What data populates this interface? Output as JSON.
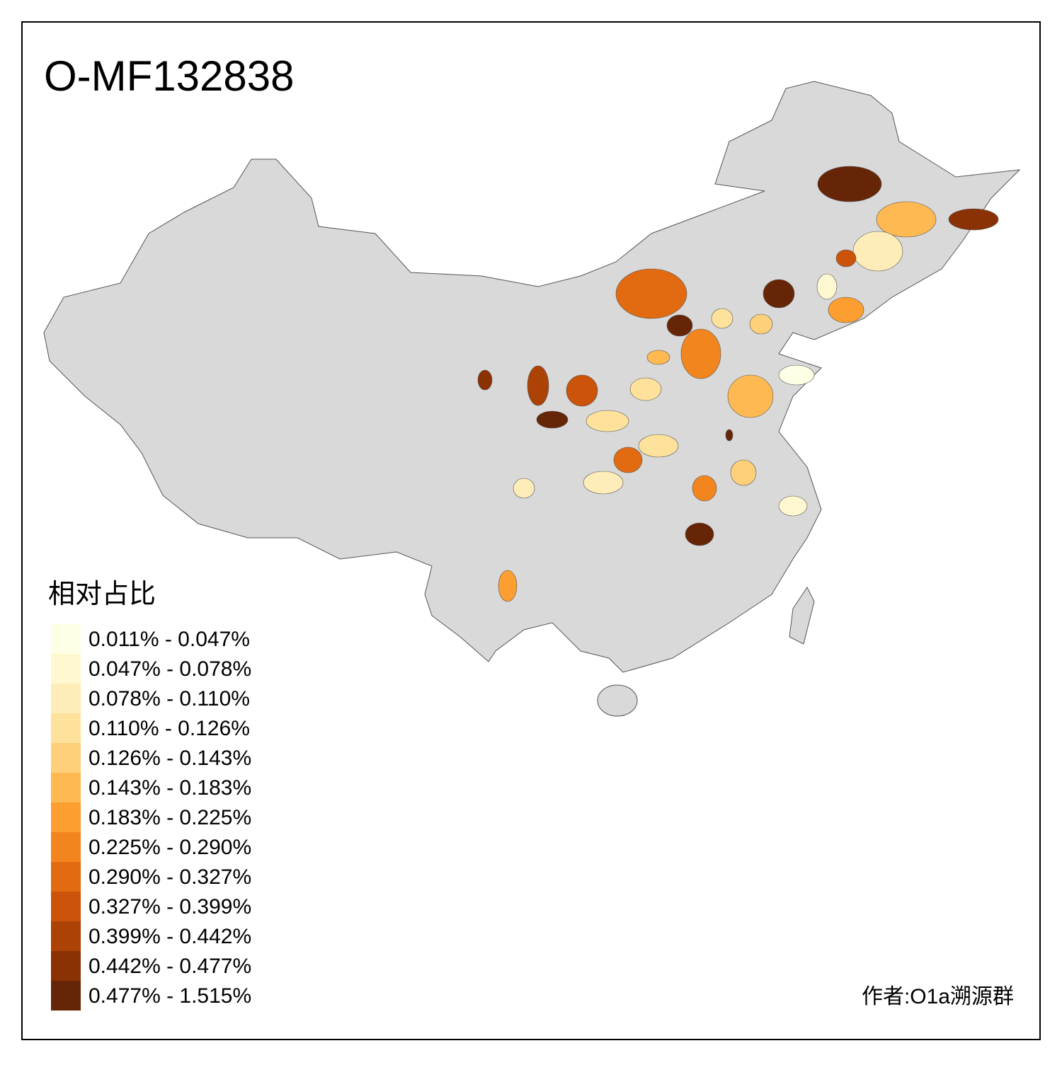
{
  "title": "O-MF132838",
  "legend": {
    "title": "相对占比",
    "items": [
      {
        "label": "0.011% - 0.047%",
        "color": "#FFFFE5"
      },
      {
        "label": "0.047% - 0.078%",
        "color": "#FFF7CF"
      },
      {
        "label": "0.078% - 0.110%",
        "color": "#FEEDB8"
      },
      {
        "label": "0.110% - 0.126%",
        "color": "#FEE29C"
      },
      {
        "label": "0.126% - 0.143%",
        "color": "#FED07A"
      },
      {
        "label": "0.143% - 0.183%",
        "color": "#FEB952"
      },
      {
        "label": "0.183% - 0.225%",
        "color": "#FC9E30"
      },
      {
        "label": "0.225% - 0.290%",
        "color": "#F3851E"
      },
      {
        "label": "0.290% - 0.327%",
        "color": "#E26B12"
      },
      {
        "label": "0.327% - 0.399%",
        "color": "#CC540A"
      },
      {
        "label": "0.399% - 0.442%",
        "color": "#AC4205"
      },
      {
        "label": "0.442% - 0.477%",
        "color": "#8A3204"
      },
      {
        "label": "0.477% - 1.515%",
        "color": "#662506"
      }
    ]
  },
  "credit": "作者:O1a溯源群"
}
